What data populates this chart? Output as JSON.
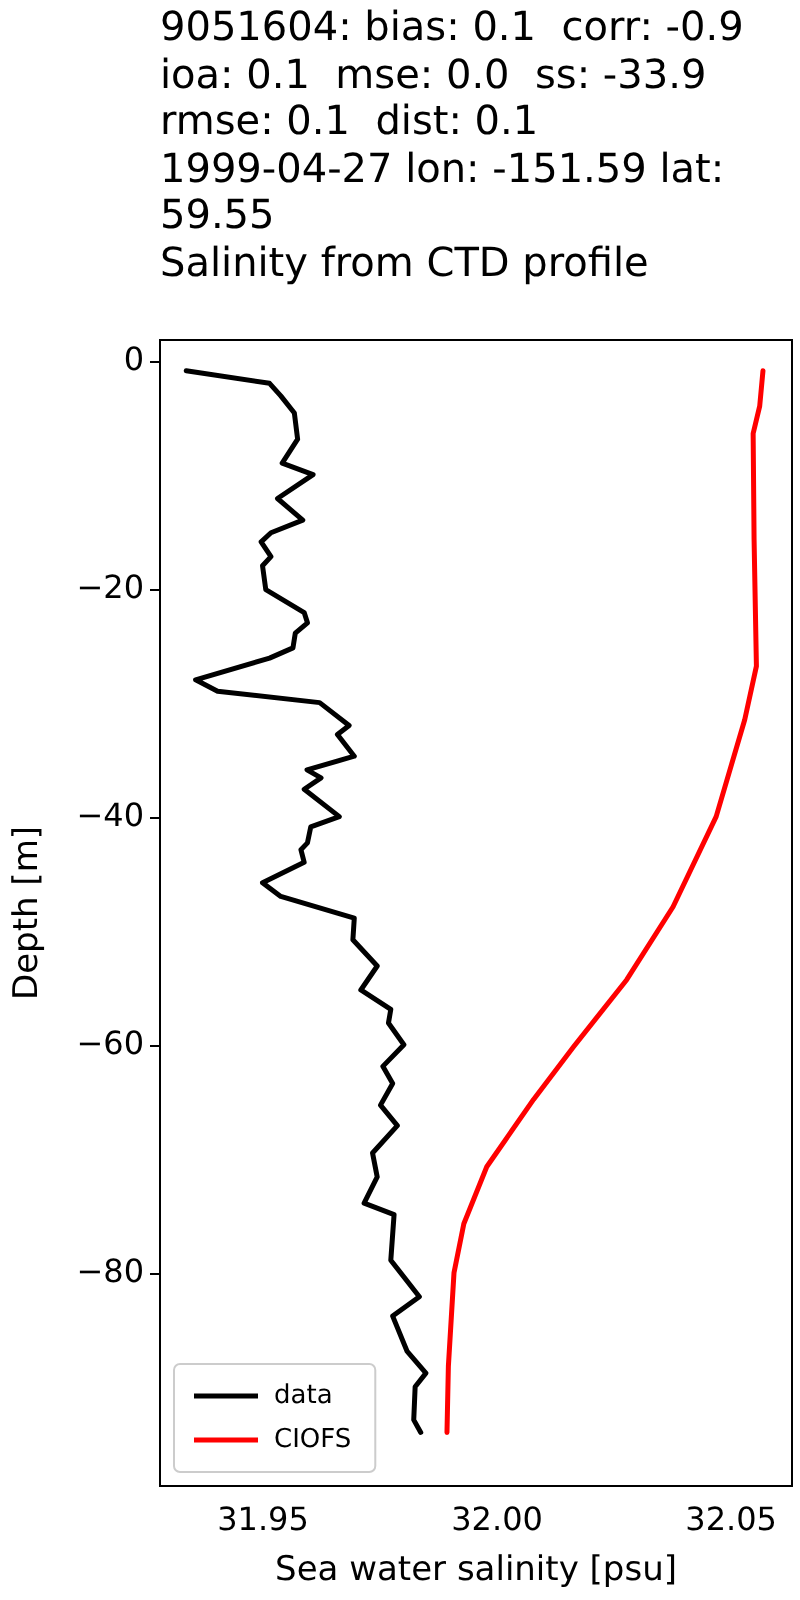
{
  "chart_data": {
    "type": "line",
    "title": "9051604: bias: 0.1  corr: -0.9  ioa: 0.1  mse: 0.0  ss: -33.9  rmse: 0.1  dist: 0.1\n1999-04-27 lon: -151.59 lat: 59.55\nSalinity from CTD profile",
    "xlabel": "Sea water salinity [psu]",
    "ylabel": "Depth [m]",
    "xlim": [
      31.928,
      32.063
    ],
    "ylim": [
      -98.6,
      1.9
    ],
    "xticks": [
      31.95,
      {
        "value": 32,
        "label": "32.00"
      },
      32.05
    ],
    "yticks": [
      0,
      -20,
      -40,
      -60,
      -80
    ],
    "legend": "lower left",
    "series": [
      {
        "name": "data",
        "color": "#000000",
        "x": [
          31.9336,
          31.9514,
          31.9538,
          31.9567,
          31.9574,
          31.9541,
          31.9607,
          31.9531,
          31.9585,
          31.9517,
          31.9496,
          31.9517,
          31.9499,
          31.9506,
          31.9588,
          31.9595,
          31.9569,
          31.9564,
          31.9514,
          31.9356,
          31.9403,
          31.9621,
          31.9684,
          31.9659,
          31.9695,
          31.9594,
          31.9624,
          31.9588,
          31.9663,
          31.9602,
          31.9595,
          31.9581,
          31.9588,
          31.9499,
          31.9538,
          31.9695,
          31.9692,
          31.9744,
          31.9709,
          31.9773,
          31.9768,
          31.9801,
          31.9756,
          31.9777,
          31.9751,
          31.9787,
          31.9734,
          31.9744,
          31.9716,
          31.978,
          31.9773,
          31.9834,
          31.9777,
          31.9808,
          31.9848,
          31.9825,
          31.9822,
          31.9837
        ],
        "values": [
          -0.8,
          -1.9,
          -3.0,
          -4.5,
          -6.8,
          -8.9,
          -9.9,
          -12.0,
          -13.9,
          -15.0,
          -15.8,
          -17.1,
          -17.9,
          -20.0,
          -22.0,
          -22.9,
          -23.8,
          -25.1,
          -26.0,
          -27.9,
          -28.9,
          -29.9,
          -31.9,
          -32.7,
          -34.6,
          -35.8,
          -36.5,
          -37.5,
          -39.9,
          -40.8,
          -42.2,
          -42.8,
          -43.9,
          -45.7,
          -46.9,
          -48.8,
          -50.7,
          -53.0,
          -55.1,
          -56.8,
          -58.0,
          -59.9,
          -61.8,
          -63.3,
          -65.2,
          -67.0,
          -69.4,
          -71.5,
          -73.8,
          -74.8,
          -78.8,
          -82.0,
          -83.7,
          -86.8,
          -88.7,
          -89.9,
          -92.8,
          -93.9
        ]
      },
      {
        "name": "CIOFS",
        "color": "#ff0000",
        "x": [
          32.0568,
          32.0561,
          32.0547,
          32.0549,
          32.0554,
          32.0529,
          32.0468,
          32.0376,
          32.0277,
          32.0163,
          32.0078,
          31.9978,
          31.9929,
          31.9908,
          31.9896,
          31.9893
        ],
        "values": [
          -0.8,
          -3.9,
          -6.3,
          -15.6,
          -26.7,
          -31.4,
          -39.9,
          -47.8,
          -54.2,
          -60.1,
          -64.7,
          -70.6,
          -75.6,
          -79.9,
          -88.1,
          -93.9
        ]
      }
    ]
  }
}
